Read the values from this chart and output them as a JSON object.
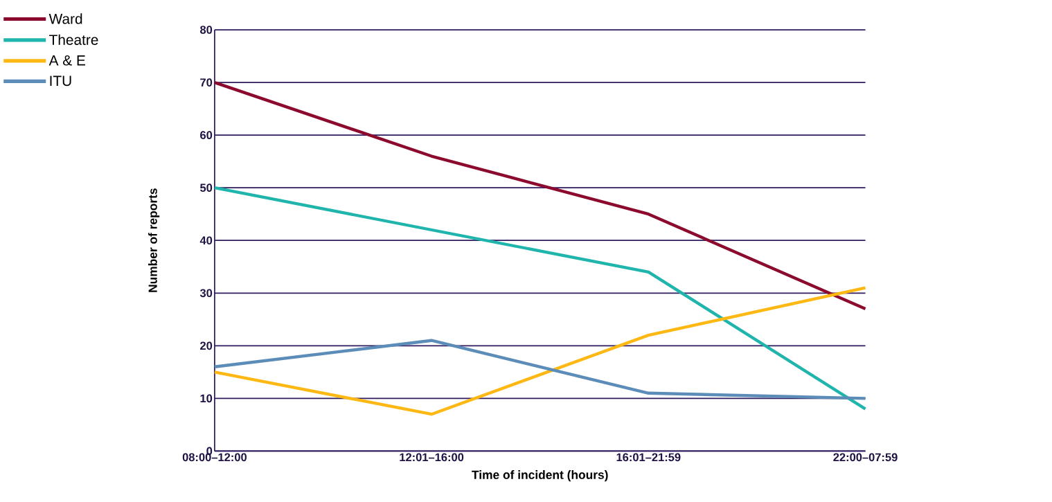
{
  "chart_data": {
    "type": "line",
    "xlabel": "Time of incident (hours)",
    "ylabel": "Number of reports",
    "categories": [
      "08:00–12:00",
      "12:01–16:00",
      "16:01–21:59",
      "22:00–07:59"
    ],
    "series": [
      {
        "name": "Ward",
        "color": "#8b0a2e",
        "values": [
          70,
          56,
          45,
          27
        ]
      },
      {
        "name": "Theatre",
        "color": "#1fb5ad",
        "values": [
          50,
          42,
          34,
          8
        ]
      },
      {
        "name": "A & E",
        "color": "#fdb813",
        "values": [
          15,
          7,
          22,
          31
        ]
      },
      {
        "name": "ITU",
        "color": "#5b8db8",
        "values": [
          16,
          21,
          11,
          10
        ]
      }
    ],
    "ylim": [
      0,
      80
    ],
    "yticks": [
      0,
      10,
      20,
      30,
      40,
      50,
      60,
      70,
      80
    ],
    "grid": "y",
    "legend": "top left",
    "marker": "none",
    "line_style": "solid"
  }
}
